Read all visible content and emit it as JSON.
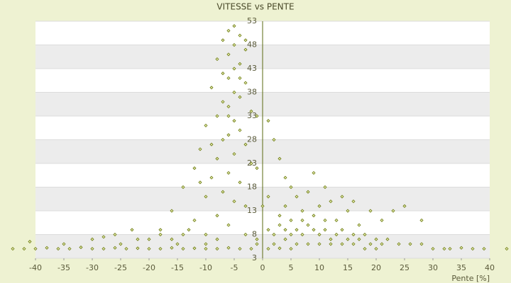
{
  "chart_data": {
    "type": "scatter",
    "title": "VITESSE vs PENTE",
    "x_label": "Pente [%]",
    "color": "#6b7a10",
    "xlim": [
      -40,
      40
    ],
    "ylim": [
      3,
      53
    ],
    "xticks": [
      -40,
      -35,
      -30,
      -25,
      -20,
      -15,
      -10,
      -5,
      0,
      5,
      10,
      15,
      20,
      25,
      30,
      35,
      40
    ],
    "yticks": [
      3,
      8,
      13,
      18,
      23,
      28,
      33,
      38,
      43,
      48,
      53
    ],
    "points": [
      [
        -5,
        52
      ],
      [
        -6,
        51
      ],
      [
        -4,
        50
      ],
      [
        -7,
        49
      ],
      [
        -5,
        48
      ],
      [
        -3,
        47
      ],
      [
        -6,
        46
      ],
      [
        -8,
        45
      ],
      [
        -4,
        44
      ],
      [
        -5,
        43
      ],
      [
        -7,
        42
      ],
      [
        -6,
        41
      ],
      [
        -3,
        40
      ],
      [
        -9,
        39
      ],
      [
        -5,
        38
      ],
      [
        -4,
        37
      ],
      [
        -7,
        36
      ],
      [
        -6,
        35
      ],
      [
        -2,
        34
      ],
      [
        -8,
        33
      ],
      [
        -5,
        32
      ],
      [
        -10,
        31
      ],
      [
        -4,
        30
      ],
      [
        -6,
        29
      ],
      [
        -7,
        28
      ],
      [
        -3,
        27
      ],
      [
        -11,
        26
      ],
      [
        -5,
        25
      ],
      [
        -8,
        24
      ],
      [
        -2,
        23
      ],
      [
        -12,
        22
      ],
      [
        -6,
        21
      ],
      [
        -9,
        20
      ],
      [
        -4,
        19
      ],
      [
        -14,
        18
      ],
      [
        -7,
        17
      ],
      [
        -10,
        16
      ],
      [
        -5,
        15
      ],
      [
        -3,
        14
      ],
      [
        -16,
        13
      ],
      [
        -8,
        12
      ],
      [
        -12,
        11
      ],
      [
        -6,
        10
      ],
      [
        -18,
        9
      ],
      [
        -10,
        8
      ],
      [
        -22,
        7
      ],
      [
        -15,
        6
      ],
      [
        -25,
        6
      ],
      [
        -20,
        7
      ],
      [
        -13,
        9
      ],
      [
        -11,
        19
      ],
      [
        -9,
        27
      ],
      [
        -6,
        33
      ],
      [
        -4,
        41
      ],
      [
        -3,
        49
      ],
      [
        -1,
        33
      ],
      [
        1,
        32
      ],
      [
        2,
        28
      ],
      [
        3,
        24
      ],
      [
        -1,
        22
      ],
      [
        4,
        20
      ],
      [
        6,
        16
      ],
      [
        5,
        18
      ],
      [
        0,
        14
      ],
      [
        1,
        9
      ],
      [
        2,
        8
      ],
      [
        3,
        10
      ],
      [
        4,
        9
      ],
      [
        5,
        8
      ],
      [
        6,
        9
      ],
      [
        7,
        8
      ],
      [
        8,
        10
      ],
      [
        9,
        9
      ],
      [
        10,
        8
      ],
      [
        11,
        9
      ],
      [
        12,
        7
      ],
      [
        13,
        8
      ],
      [
        14,
        9
      ],
      [
        15,
        7
      ],
      [
        16,
        8
      ],
      [
        17,
        7
      ],
      [
        18,
        8
      ],
      [
        19,
        6
      ],
      [
        20,
        7
      ],
      [
        21,
        6
      ],
      [
        22,
        7
      ],
      [
        24,
        6
      ],
      [
        26,
        6
      ],
      [
        28,
        6
      ],
      [
        30,
        5
      ],
      [
        32,
        5
      ],
      [
        2,
        6
      ],
      [
        4,
        7
      ],
      [
        6,
        6
      ],
      [
        8,
        6
      ],
      [
        10,
        6
      ],
      [
        12,
        6
      ],
      [
        14,
        6
      ],
      [
        16,
        6
      ],
      [
        18,
        5
      ],
      [
        20,
        5
      ],
      [
        3,
        12
      ],
      [
        5,
        11
      ],
      [
        7,
        11
      ],
      [
        9,
        12
      ],
      [
        11,
        11
      ],
      [
        13,
        11
      ],
      [
        15,
        13
      ],
      [
        17,
        10
      ],
      [
        19,
        13
      ],
      [
        21,
        11
      ],
      [
        23,
        13
      ],
      [
        25,
        14
      ],
      [
        28,
        11
      ],
      [
        7,
        13
      ],
      [
        10,
        14
      ],
      [
        12,
        15
      ],
      [
        14,
        16
      ],
      [
        16,
        15
      ],
      [
        8,
        17
      ],
      [
        11,
        18
      ],
      [
        9,
        21
      ],
      [
        4,
        14
      ],
      [
        1,
        16
      ],
      [
        -44,
        5
      ],
      [
        -42,
        5
      ],
      [
        -40,
        5
      ],
      [
        -38,
        5.2
      ],
      [
        -36,
        5
      ],
      [
        -34,
        5
      ],
      [
        -32,
        5.3
      ],
      [
        -30,
        5
      ],
      [
        -28,
        5
      ],
      [
        -26,
        5.2
      ],
      [
        -24,
        5
      ],
      [
        -22,
        5.1
      ],
      [
        -20,
        5
      ],
      [
        -18,
        5
      ],
      [
        -16,
        5.2
      ],
      [
        -14,
        5
      ],
      [
        -12,
        5.1
      ],
      [
        -10,
        5
      ],
      [
        -8,
        5
      ],
      [
        -6,
        5.2
      ],
      [
        -4,
        5
      ],
      [
        -2,
        5
      ],
      [
        1,
        5
      ],
      [
        3,
        5.1
      ],
      [
        5,
        5
      ],
      [
        33,
        5
      ],
      [
        35,
        5.2
      ],
      [
        37,
        5
      ],
      [
        39,
        5
      ],
      [
        43,
        5
      ],
      [
        -41,
        6.5
      ],
      [
        -35,
        6
      ],
      [
        -30,
        7
      ],
      [
        -28,
        7.5
      ],
      [
        -26,
        8
      ],
      [
        -23,
        9
      ],
      [
        -18,
        8
      ],
      [
        -16,
        7
      ],
      [
        -14,
        8
      ],
      [
        -10,
        6
      ],
      [
        -8,
        7
      ],
      [
        -3,
        8
      ],
      [
        -1,
        7
      ],
      [
        -1,
        6
      ]
    ]
  }
}
